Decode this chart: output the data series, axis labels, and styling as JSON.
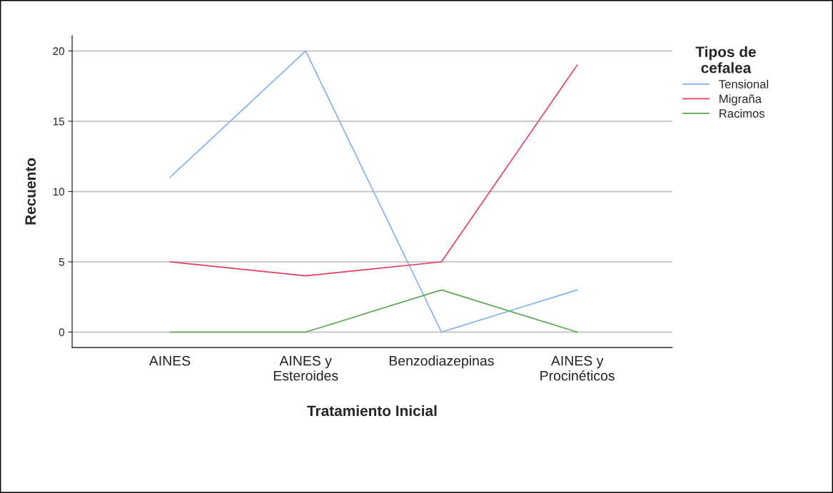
{
  "chart_data": {
    "type": "line",
    "xlabel": "Tratamiento Inicial",
    "ylabel": "Recuento",
    "legend_title": "Tipos de\ncefalea",
    "categories": [
      "AINES",
      "AINES y\nEsteroides",
      "Benzodiazepinas",
      "AINES y\nProcinéticos"
    ],
    "series": [
      {
        "name": "Tensional",
        "color": "#7eb1ef",
        "values": [
          11,
          20,
          0,
          3
        ]
      },
      {
        "name": "Migraña",
        "color": "#e53d5e",
        "values": [
          5,
          4,
          5,
          19
        ]
      },
      {
        "name": "Racimos",
        "color": "#5ba74f",
        "values": [
          0,
          0,
          3,
          0
        ]
      }
    ],
    "ylim": [
      -1.1,
      21.1
    ],
    "yticks": [
      0,
      5,
      10,
      15,
      20
    ],
    "grid": "y",
    "legend": "top right",
    "marker": "none",
    "line_style": "solid"
  }
}
